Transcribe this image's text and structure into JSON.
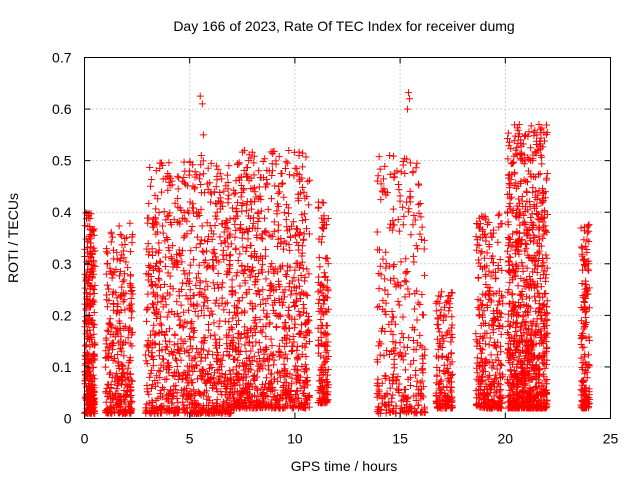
{
  "chart_data": {
    "type": "scatter",
    "title": "Day 166 of 2023, Rate Of TEC Index for receiver dumg",
    "xlabel": "GPS time / hours",
    "ylabel": "ROTI / TECUs",
    "xlim": [
      0,
      25
    ],
    "ylim": [
      0,
      0.7
    ],
    "x_ticks": [
      "0",
      "5",
      "10",
      "15",
      "20",
      "25"
    ],
    "y_ticks": [
      "0",
      "0.1",
      "0.2",
      "0.3",
      "0.4",
      "0.5",
      "0.6",
      "0.7"
    ],
    "grid": true,
    "marker": "plus",
    "series_color": "#ff0000",
    "clusters": [
      {
        "x": [
          0.0,
          0.5
        ],
        "y_range": [
          0.01,
          0.4
        ],
        "density": "high"
      },
      {
        "x": [
          1.0,
          2.3
        ],
        "y_range": [
          0.01,
          0.38
        ],
        "density": "high"
      },
      {
        "x": [
          2.9,
          7.0
        ],
        "y_range": [
          0.01,
          0.5
        ],
        "density": "very high"
      },
      {
        "x": [
          7.0,
          10.7
        ],
        "y_range": [
          0.02,
          0.52
        ],
        "density": "very high"
      },
      {
        "x": [
          11.1,
          11.6
        ],
        "y_range": [
          0.03,
          0.42
        ],
        "density": "medium"
      },
      {
        "x": [
          13.9,
          16.2
        ],
        "y_range": [
          0.01,
          0.51
        ],
        "density": "high"
      },
      {
        "x": [
          16.7,
          17.5
        ],
        "y_range": [
          0.02,
          0.25
        ],
        "density": "medium"
      },
      {
        "x": [
          18.6,
          19.9
        ],
        "y_range": [
          0.02,
          0.4
        ],
        "density": "high"
      },
      {
        "x": [
          20.1,
          22.0
        ],
        "y_range": [
          0.02,
          0.57
        ],
        "density": "very high"
      },
      {
        "x": [
          23.6,
          24.0
        ],
        "y_range": [
          0.02,
          0.38
        ],
        "density": "medium"
      }
    ],
    "peaks": [
      {
        "x": 5.5,
        "y": 0.625
      },
      {
        "x": 5.6,
        "y": 0.61
      },
      {
        "x": 5.65,
        "y": 0.55
      },
      {
        "x": 5.55,
        "y": 0.51
      },
      {
        "x": 3.6,
        "y": 0.495
      },
      {
        "x": 7.6,
        "y": 0.52
      },
      {
        "x": 7.8,
        "y": 0.5
      },
      {
        "x": 7.7,
        "y": 0.47
      },
      {
        "x": 14.5,
        "y": 0.51
      },
      {
        "x": 15.4,
        "y": 0.632
      },
      {
        "x": 15.45,
        "y": 0.62
      },
      {
        "x": 15.35,
        "y": 0.6
      },
      {
        "x": 21.6,
        "y": 0.57
      },
      {
        "x": 21.5,
        "y": 0.55
      },
      {
        "x": 21.2,
        "y": 0.525
      },
      {
        "x": 21.3,
        "y": 0.5
      },
      {
        "x": 21.1,
        "y": 0.48
      },
      {
        "x": 22.0,
        "y": 0.475
      },
      {
        "x": 21.9,
        "y": 0.44
      },
      {
        "x": 21.7,
        "y": 0.51
      }
    ]
  }
}
